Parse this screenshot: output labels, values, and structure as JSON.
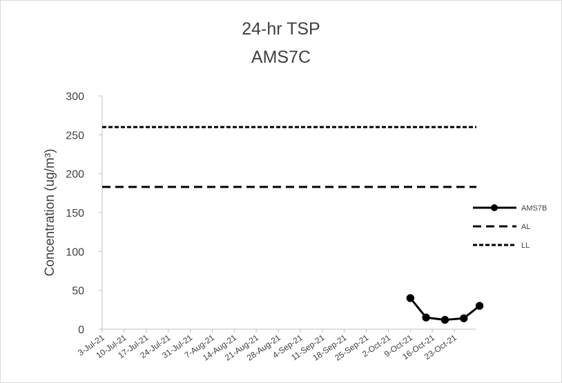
{
  "chart_data": {
    "type": "line",
    "title": "24-hr TSP",
    "subtitle": "AMS7C",
    "ylabel": "Concentration (ug/m³)",
    "ylim": [
      0,
      300
    ],
    "yticks": [
      0,
      50,
      100,
      150,
      200,
      250,
      300
    ],
    "categories": [
      "3-Jul-21",
      "10-Jul-21",
      "17-Jul-21",
      "24-Jul-21",
      "31-Jul-21",
      "7-Aug-21",
      "14-Aug-21",
      "21-Aug-21",
      "28-Aug-21",
      "4-Sep-21",
      "11-Sep-21",
      "18-Sep-21",
      "25-Sep-21",
      "2-Oct-21",
      "9-Oct-21",
      "16-Oct-21",
      "23-Oct-21"
    ],
    "x_range": [
      "3-Jul-21",
      "30-Oct-21"
    ],
    "grid": false,
    "legend_position": "right",
    "series": [
      {
        "name": "AMS7B",
        "style": "solid-marker",
        "color": "#000000",
        "points": [
          {
            "x": "9-Oct-21",
            "y": 40
          },
          {
            "x": "14-Oct-21",
            "y": 15
          },
          {
            "x": "20-Oct-21",
            "y": 12
          },
          {
            "x": "26-Oct-21",
            "y": 14
          },
          {
            "x": "31-Oct-21",
            "y": 30
          }
        ]
      },
      {
        "name": "AL",
        "style": "long-dash",
        "color": "#000000",
        "points": [
          {
            "x": "3-Jul-21",
            "y": 183
          },
          {
            "x": "30-Oct-21",
            "y": 183
          }
        ]
      },
      {
        "name": "LL",
        "style": "short-dash",
        "color": "#000000",
        "points": [
          {
            "x": "3-Jul-21",
            "y": 260
          },
          {
            "x": "30-Oct-21",
            "y": 260
          }
        ]
      }
    ]
  }
}
